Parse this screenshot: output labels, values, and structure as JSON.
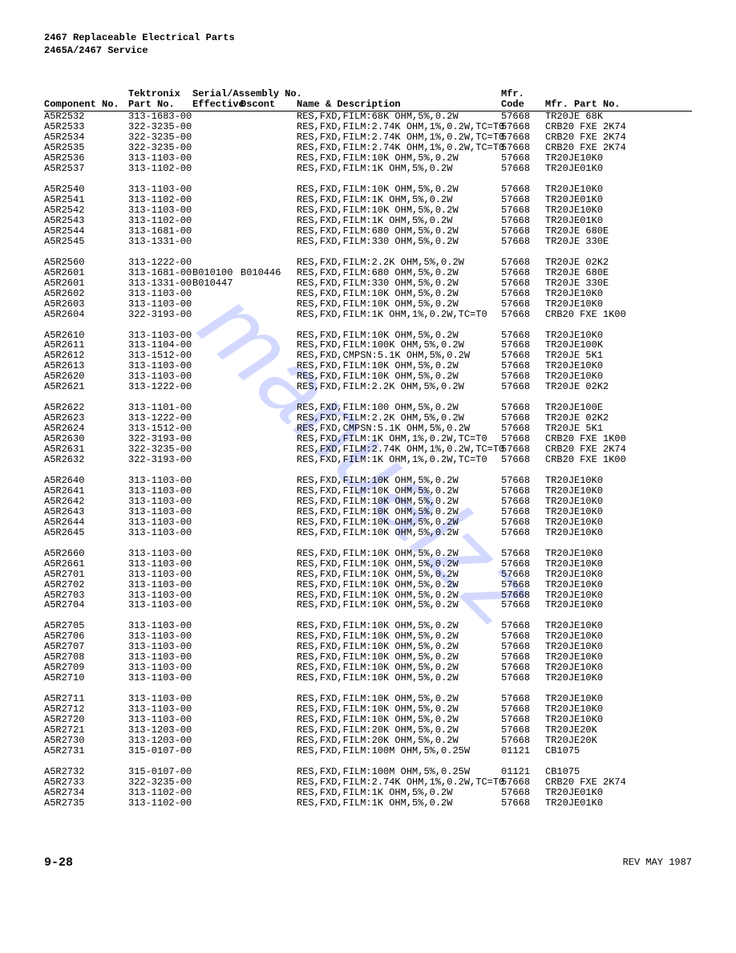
{
  "header": {
    "line1": "2467 Replaceable Electrical Parts",
    "line2": "2465A/2467 Service"
  },
  "columns": {
    "comp_top": "",
    "comp": "Component No.",
    "tek_top": "Tektronix",
    "tek": "Part No.",
    "serial_top": "Serial/Assembly No.",
    "eff": "Effective",
    "dsc": "Dscont",
    "desc": "Name & Description",
    "mfr_top": "Mfr.",
    "mfr": "Code",
    "mpn": "Mfr. Part No."
  },
  "rows": [
    {
      "c": "A5R2532",
      "t": "313-1683-00",
      "e": "",
      "d": "",
      "n": "RES,FXD,FILM:68K OHM,5%,0.2W",
      "m": "57668",
      "p": "TR20JE 68K"
    },
    {
      "c": "A5R2533",
      "t": "322-3235-00",
      "e": "",
      "d": "",
      "n": "RES,FXD,FILM:2.74K OHM,1%,0.2W,TC=T0",
      "m": "57668",
      "p": "CRB20 FXE 2K74"
    },
    {
      "c": "A5R2534",
      "t": "322-3235-00",
      "e": "",
      "d": "",
      "n": "RES,FXD,FILM:2.74K OHM,1%,0.2W,TC=T0",
      "m": "57668",
      "p": "CRB20 FXE 2K74"
    },
    {
      "c": "A5R2535",
      "t": "322-3235-00",
      "e": "",
      "d": "",
      "n": "RES,FXD,FILM:2.74K OHM,1%,0.2W,TC=T0",
      "m": "57668",
      "p": "CRB20 FXE 2K74"
    },
    {
      "c": "A5R2536",
      "t": "313-1103-00",
      "e": "",
      "d": "",
      "n": "RES,FXD,FILM:10K OHM,5%,0.2W",
      "m": "57668",
      "p": "TR20JE10K0"
    },
    {
      "c": "A5R2537",
      "t": "313-1102-00",
      "e": "",
      "d": "",
      "n": "RES,FXD,FILM:1K OHM,5%,0.2W",
      "m": "57668",
      "p": "TR20JE01K0"
    },
    {
      "gap": true
    },
    {
      "c": "A5R2540",
      "t": "313-1103-00",
      "e": "",
      "d": "",
      "n": "RES,FXD,FILM:10K OHM,5%,0.2W",
      "m": "57668",
      "p": "TR20JE10K0"
    },
    {
      "c": "A5R2541",
      "t": "313-1102-00",
      "e": "",
      "d": "",
      "n": "RES,FXD,FILM:1K OHM,5%,0.2W",
      "m": "57668",
      "p": "TR20JE01K0"
    },
    {
      "c": "A5R2542",
      "t": "313-1103-00",
      "e": "",
      "d": "",
      "n": "RES,FXD,FILM:10K OHM,5%,0.2W",
      "m": "57668",
      "p": "TR20JE10K0"
    },
    {
      "c": "A5R2543",
      "t": "313-1102-00",
      "e": "",
      "d": "",
      "n": "RES,FXD,FILM:1K OHM,5%,0.2W",
      "m": "57668",
      "p": "TR20JE01K0"
    },
    {
      "c": "A5R2544",
      "t": "313-1681-00",
      "e": "",
      "d": "",
      "n": "RES,FXD,FILM:680 OHM,5%,0.2W",
      "m": "57668",
      "p": "TR20JE 680E"
    },
    {
      "c": "A5R2545",
      "t": "313-1331-00",
      "e": "",
      "d": "",
      "n": "RES,FXD,FILM:330 OHM,5%,0.2W",
      "m": "57668",
      "p": "TR20JE 330E"
    },
    {
      "gap": true
    },
    {
      "c": "A5R2560",
      "t": "313-1222-00",
      "e": "",
      "d": "",
      "n": "RES,FXD,FILM:2.2K OHM,5%,0.2W",
      "m": "57668",
      "p": "TR20JE 02K2"
    },
    {
      "c": "A5R2601",
      "t": "313-1681-00",
      "e": "B010100",
      "d": "B010446",
      "n": "RES,FXD,FILM:680 OHM,5%,0.2W",
      "m": "57668",
      "p": "TR20JE 680E"
    },
    {
      "c": "A5R2601",
      "t": "313-1331-00",
      "e": "B010447",
      "d": "",
      "n": "RES,FXD,FILM:330 OHM,5%,0.2W",
      "m": "57668",
      "p": "TR20JE 330E"
    },
    {
      "c": "A5R2602",
      "t": "313-1103-00",
      "e": "",
      "d": "",
      "n": "RES,FXD,FILM:10K OHM,5%,0.2W",
      "m": "57668",
      "p": "TR20JE10K0"
    },
    {
      "c": "A5R2603",
      "t": "313-1103-00",
      "e": "",
      "d": "",
      "n": "RES,FXD,FILM:10K OHM,5%,0.2W",
      "m": "57668",
      "p": "TR20JE10K0"
    },
    {
      "c": "A5R2604",
      "t": "322-3193-00",
      "e": "",
      "d": "",
      "n": "RES,FXD,FILM:1K OHM,1%,0.2W,TC=T0",
      "m": "57668",
      "p": "CRB20 FXE 1K00"
    },
    {
      "gap": true
    },
    {
      "c": "A5R2610",
      "t": "313-1103-00",
      "e": "",
      "d": "",
      "n": "RES,FXD,FILM:10K OHM,5%,0.2W",
      "m": "57668",
      "p": "TR20JE10K0"
    },
    {
      "c": "A5R2611",
      "t": "313-1104-00",
      "e": "",
      "d": "",
      "n": "RES,FXD,FILM:100K OHM,5%,0.2W",
      "m": "57668",
      "p": "TR20JE100K"
    },
    {
      "c": "A5R2612",
      "t": "313-1512-00",
      "e": "",
      "d": "",
      "n": "RES,FXD,CMPSN:5.1K OHM,5%,0.2W",
      "m": "57668",
      "p": "TR20JE 5K1"
    },
    {
      "c": "A5R2613",
      "t": "313-1103-00",
      "e": "",
      "d": "",
      "n": "RES,FXD,FILM:10K OHM,5%,0.2W",
      "m": "57668",
      "p": "TR20JE10K0"
    },
    {
      "c": "A5R2620",
      "t": "313-1103-00",
      "e": "",
      "d": "",
      "n": "RES,FXD,FILM:10K OHM,5%,0.2W",
      "m": "57668",
      "p": "TR20JE10K0"
    },
    {
      "c": "A5R2621",
      "t": "313-1222-00",
      "e": "",
      "d": "",
      "n": "RES,FXD,FILM:2.2K OHM,5%,0.2W",
      "m": "57668",
      "p": "TR20JE 02K2"
    },
    {
      "gap": true
    },
    {
      "c": "A5R2622",
      "t": "313-1101-00",
      "e": "",
      "d": "",
      "n": "RES,FXD,FILM:100 OHM,5%,0.2W",
      "m": "57668",
      "p": "TR20JE100E"
    },
    {
      "c": "A5R2623",
      "t": "313-1222-00",
      "e": "",
      "d": "",
      "n": "RES,FXD,FILM:2.2K OHM,5%,0.2W",
      "m": "57668",
      "p": "TR20JE 02K2"
    },
    {
      "c": "A5R2624",
      "t": "313-1512-00",
      "e": "",
      "d": "",
      "n": "RES,FXD,CMPSN:5.1K OHM,5%,0.2W",
      "m": "57668",
      "p": "TR20JE 5K1"
    },
    {
      "c": "A5R2630",
      "t": "322-3193-00",
      "e": "",
      "d": "",
      "n": "RES,FXD,FILM:1K OHM,1%,0.2W,TC=T0",
      "m": "57668",
      "p": "CRB20 FXE 1K00"
    },
    {
      "c": "A5R2631",
      "t": "322-3235-00",
      "e": "",
      "d": "",
      "n": "RES,FXD,FILM:2.74K OHM,1%,0.2W,TC=T0",
      "m": "57668",
      "p": "CRB20 FXE 2K74"
    },
    {
      "c": "A5R2632",
      "t": "322-3193-00",
      "e": "",
      "d": "",
      "n": "RES,FXD,FILM:1K OHM,1%,0.2W,TC=T0",
      "m": "57668",
      "p": "CRB20 FXE 1K00"
    },
    {
      "gap": true
    },
    {
      "c": "A5R2640",
      "t": "313-1103-00",
      "e": "",
      "d": "",
      "n": "RES,FXD,FILM:10K OHM,5%,0.2W",
      "m": "57668",
      "p": "TR20JE10K0"
    },
    {
      "c": "A5R2641",
      "t": "313-1103-00",
      "e": "",
      "d": "",
      "n": "RES,FXD,FILM:10K OHM,5%,0.2W",
      "m": "57668",
      "p": "TR20JE10K0"
    },
    {
      "c": "A5R2642",
      "t": "313-1103-00",
      "e": "",
      "d": "",
      "n": "RES,FXD,FILM:10K OHM,5%,0.2W",
      "m": "57668",
      "p": "TR20JE10K0"
    },
    {
      "c": "A5R2643",
      "t": "313-1103-00",
      "e": "",
      "d": "",
      "n": "RES,FXD,FILM:10K OHM,5%,0.2W",
      "m": "57668",
      "p": "TR20JE10K0"
    },
    {
      "c": "A5R2644",
      "t": "313-1103-00",
      "e": "",
      "d": "",
      "n": "RES,FXD,FILM:10K OHM,5%,0.2W",
      "m": "57668",
      "p": "TR20JE10K0"
    },
    {
      "c": "A5R2645",
      "t": "313-1103-00",
      "e": "",
      "d": "",
      "n": "RES,FXD,FILM:10K OHM,5%,0.2W",
      "m": "57668",
      "p": "TR20JE10K0"
    },
    {
      "gap": true
    },
    {
      "c": "A5R2660",
      "t": "313-1103-00",
      "e": "",
      "d": "",
      "n": "RES,FXD,FILM:10K OHM,5%,0.2W",
      "m": "57668",
      "p": "TR20JE10K0"
    },
    {
      "c": "A5R2661",
      "t": "313-1103-00",
      "e": "",
      "d": "",
      "n": "RES,FXD,FILM:10K OHM,5%,0.2W",
      "m": "57668",
      "p": "TR20JE10K0"
    },
    {
      "c": "A5R2701",
      "t": "313-1103-00",
      "e": "",
      "d": "",
      "n": "RES,FXD,FILM:10K OHM,5%,0.2W",
      "m": "57668",
      "p": "TR20JE10K0"
    },
    {
      "c": "A5R2702",
      "t": "313-1103-00",
      "e": "",
      "d": "",
      "n": "RES,FXD,FILM:10K OHM,5%,0.2W",
      "m": "57668",
      "p": "TR20JE10K0"
    },
    {
      "c": "A5R2703",
      "t": "313-1103-00",
      "e": "",
      "d": "",
      "n": "RES,FXD,FILM:10K OHM,5%,0.2W",
      "m": "57668",
      "p": "TR20JE10K0"
    },
    {
      "c": "A5R2704",
      "t": "313-1103-00",
      "e": "",
      "d": "",
      "n": "RES,FXD,FILM:10K OHM,5%,0.2W",
      "m": "57668",
      "p": "TR20JE10K0"
    },
    {
      "gap": true
    },
    {
      "c": "A5R2705",
      "t": "313-1103-00",
      "e": "",
      "d": "",
      "n": "RES,FXD,FILM:10K OHM,5%,0.2W",
      "m": "57668",
      "p": "TR20JE10K0"
    },
    {
      "c": "A5R2706",
      "t": "313-1103-00",
      "e": "",
      "d": "",
      "n": "RES,FXD,FILM:10K OHM,5%,0.2W",
      "m": "57668",
      "p": "TR20JE10K0"
    },
    {
      "c": "A5R2707",
      "t": "313-1103-00",
      "e": "",
      "d": "",
      "n": "RES,FXD,FILM:10K OHM,5%,0.2W",
      "m": "57668",
      "p": "TR20JE10K0"
    },
    {
      "c": "A5R2708",
      "t": "313-1103-00",
      "e": "",
      "d": "",
      "n": "RES,FXD,FILM:10K OHM,5%,0.2W",
      "m": "57668",
      "p": "TR20JE10K0"
    },
    {
      "c": "A5R2709",
      "t": "313-1103-00",
      "e": "",
      "d": "",
      "n": "RES,FXD,FILM:10K OHM,5%,0.2W",
      "m": "57668",
      "p": "TR20JE10K0"
    },
    {
      "c": "A5R2710",
      "t": "313-1103-00",
      "e": "",
      "d": "",
      "n": "RES,FXD,FILM:10K OHM,5%,0.2W",
      "m": "57668",
      "p": "TR20JE10K0"
    },
    {
      "gap": true
    },
    {
      "c": "A5R2711",
      "t": "313-1103-00",
      "e": "",
      "d": "",
      "n": "RES,FXD,FILM:10K OHM,5%,0.2W",
      "m": "57668",
      "p": "TR20JE10K0"
    },
    {
      "c": "A5R2712",
      "t": "313-1103-00",
      "e": "",
      "d": "",
      "n": "RES,FXD,FILM:10K OHM,5%,0.2W",
      "m": "57668",
      "p": "TR20JE10K0"
    },
    {
      "c": "A5R2720",
      "t": "313-1103-00",
      "e": "",
      "d": "",
      "n": "RES,FXD,FILM:10K OHM,5%,0.2W",
      "m": "57668",
      "p": "TR20JE10K0"
    },
    {
      "c": "A5R2721",
      "t": "313-1203-00",
      "e": "",
      "d": "",
      "n": "RES,FXD,FILM:20K OHM,5%,0.2W",
      "m": "57668",
      "p": "TR20JE20K"
    },
    {
      "c": "A5R2730",
      "t": "313-1203-00",
      "e": "",
      "d": "",
      "n": "RES,FXD,FILM:20K OHM,5%,0.2W",
      "m": "57668",
      "p": "TR20JE20K"
    },
    {
      "c": "A5R2731",
      "t": "315-0107-00",
      "e": "",
      "d": "",
      "n": "RES,FXD,FILM:100M OHM,5%,0.25W",
      "m": "01121",
      "p": "CB1075"
    },
    {
      "gap": true
    },
    {
      "c": "A5R2732",
      "t": "315-0107-00",
      "e": "",
      "d": "",
      "n": "RES,FXD,FILM:100M OHM,5%,0.25W",
      "m": "01121",
      "p": "CB1075"
    },
    {
      "c": "A5R2733",
      "t": "322-3235-00",
      "e": "",
      "d": "",
      "n": "RES,FXD,FILM:2.74K OHM,1%,0.2W,TC=T0",
      "m": "57668",
      "p": "CRB20 FXE 2K74"
    },
    {
      "c": "A5R2734",
      "t": "313-1102-00",
      "e": "",
      "d": "",
      "n": "RES,FXD,FILM:1K OHM,5%,0.2W",
      "m": "57668",
      "p": "TR20JE01K0"
    },
    {
      "c": "A5R2735",
      "t": "313-1102-00",
      "e": "",
      "d": "",
      "n": "RES,FXD,FILM:1K OHM,5%,0.2W",
      "m": "57668",
      "p": "TR20JE01K0"
    }
  ],
  "footer": {
    "page": "9-28",
    "rev": "REV MAY 1987"
  },
  "watermark": "manualzz"
}
